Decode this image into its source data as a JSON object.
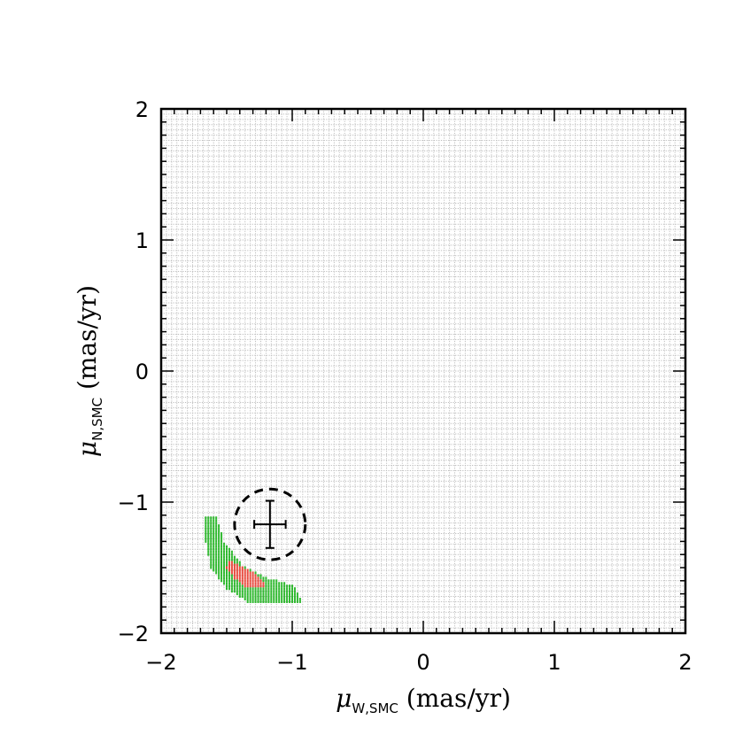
{
  "chart_data": {
    "type": "scatter",
    "xlim": [
      -2,
      2
    ],
    "ylim": [
      -2,
      2
    ],
    "x_ticks": [
      -2,
      -1,
      0,
      1,
      2
    ],
    "y_ticks": [
      -2,
      -1,
      0,
      1,
      2
    ],
    "x_tick_labels": [
      "−2",
      "−1",
      "0",
      "1",
      "2"
    ],
    "y_tick_labels": [
      "−2",
      "−1",
      "0",
      "1",
      "2"
    ],
    "xlabel": {
      "greek": "μ",
      "sub": "W,SMC",
      "unit": " (mas/yr)"
    },
    "ylabel": {
      "greek": "μ",
      "sub": "N,SMC",
      "unit": " (mas/yr)"
    },
    "grid_step": 0.04,
    "grid_color": "#bdbdbd",
    "region_step": 0.02,
    "green_region": {
      "color": "#2fb82f",
      "polygon": [
        [
          -1.66,
          -1.1
        ],
        [
          -1.58,
          -1.1
        ],
        [
          -1.52,
          -1.3
        ],
        [
          -1.38,
          -1.48
        ],
        [
          -1.18,
          -1.58
        ],
        [
          -0.98,
          -1.64
        ],
        [
          -0.92,
          -1.76
        ],
        [
          -1.34,
          -1.76
        ],
        [
          -1.5,
          -1.66
        ],
        [
          -1.62,
          -1.5
        ],
        [
          -1.66,
          -1.3
        ]
      ]
    },
    "red_region": {
      "color": "#e8483c",
      "polygon": [
        [
          -1.48,
          -1.44
        ],
        [
          -1.4,
          -1.48
        ],
        [
          -1.26,
          -1.56
        ],
        [
          -1.2,
          -1.64
        ],
        [
          -1.34,
          -1.66
        ],
        [
          -1.44,
          -1.58
        ],
        [
          -1.5,
          -1.5
        ]
      ]
    },
    "measurement": {
      "x": -1.17,
      "y": -1.17,
      "xerr": 0.12,
      "yerr": 0.18
    },
    "circle": {
      "x": -1.17,
      "y": -1.17,
      "r": 0.27
    }
  }
}
